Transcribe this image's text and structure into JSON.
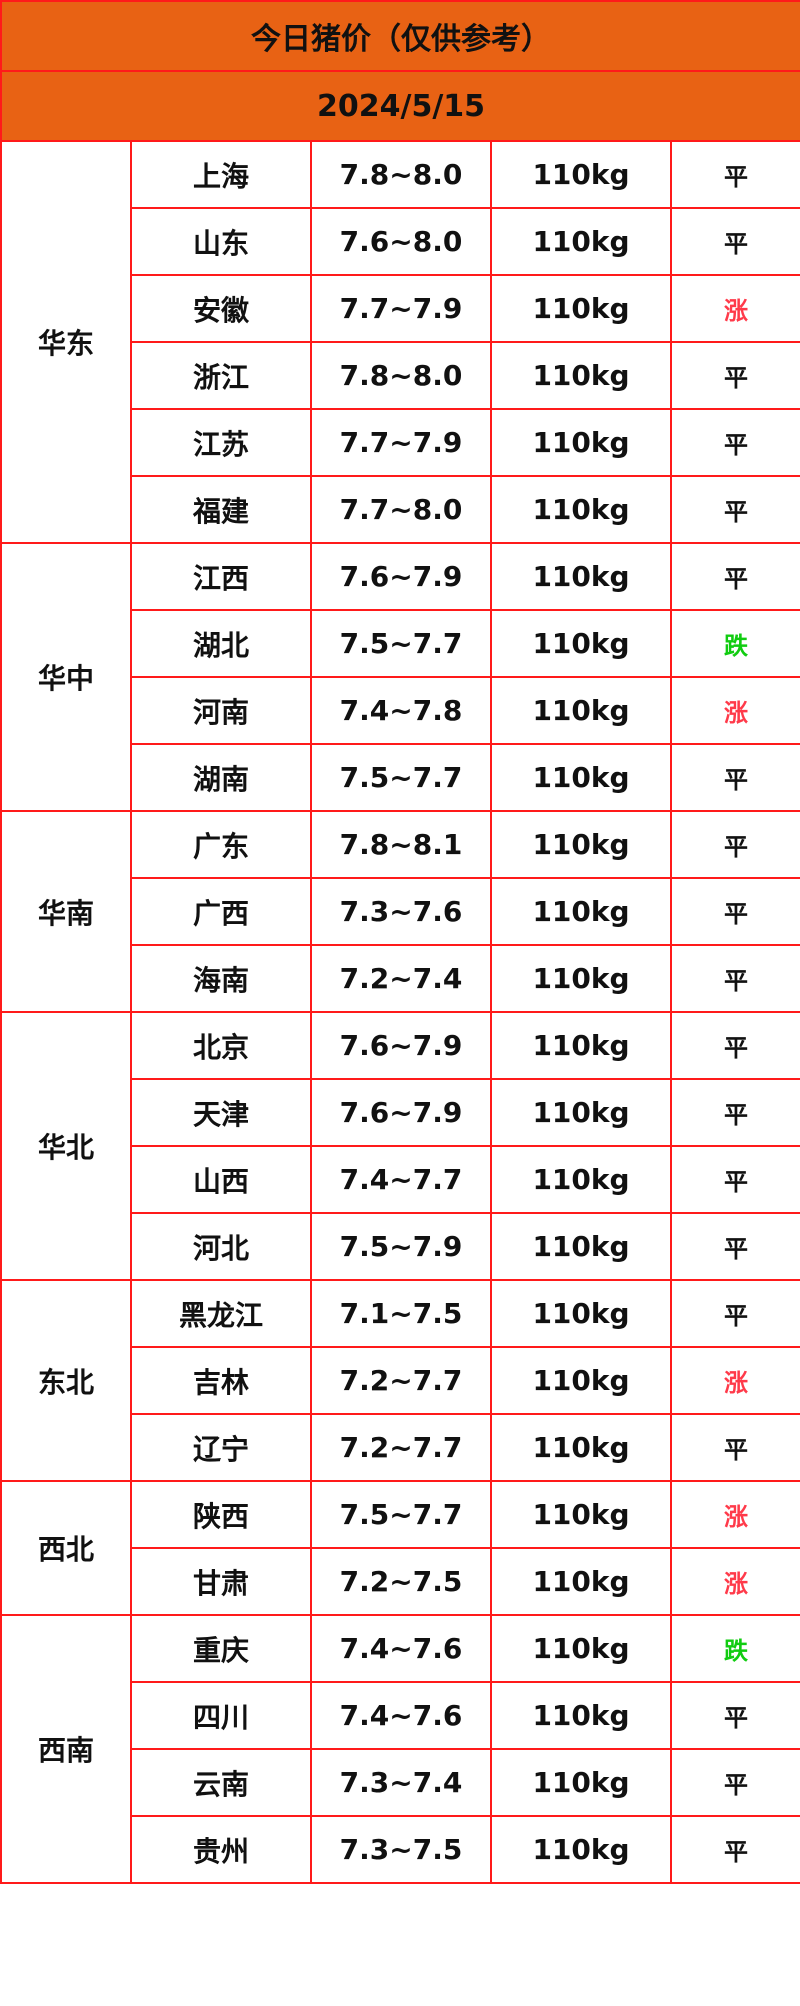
{
  "title": "今日猪价（仅供参考）",
  "date": "2024/5/15",
  "colors": {
    "header_bg": "#e86214",
    "border": "#ff1a1a",
    "up": "#ff3a4a",
    "down": "#11cc11"
  },
  "regions": [
    {
      "name": "华东",
      "rows": [
        {
          "province": "上海",
          "price": "7.8~8.0",
          "weight": "110kg",
          "trend": "平"
        },
        {
          "province": "山东",
          "price": "7.6~8.0",
          "weight": "110kg",
          "trend": "平"
        },
        {
          "province": "安徽",
          "price": "7.7~7.9",
          "weight": "110kg",
          "trend": "涨"
        },
        {
          "province": "浙江",
          "price": "7.8~8.0",
          "weight": "110kg",
          "trend": "平"
        },
        {
          "province": "江苏",
          "price": "7.7~7.9",
          "weight": "110kg",
          "trend": "平"
        },
        {
          "province": "福建",
          "price": "7.7~8.0",
          "weight": "110kg",
          "trend": "平"
        }
      ]
    },
    {
      "name": "华中",
      "rows": [
        {
          "province": "江西",
          "price": "7.6~7.9",
          "weight": "110kg",
          "trend": "平"
        },
        {
          "province": "湖北",
          "price": "7.5~7.7",
          "weight": "110kg",
          "trend": "跌"
        },
        {
          "province": "河南",
          "price": "7.4~7.8",
          "weight": "110kg",
          "trend": "涨"
        },
        {
          "province": "湖南",
          "price": "7.5~7.7",
          "weight": "110kg",
          "trend": "平"
        }
      ]
    },
    {
      "name": "华南",
      "rows": [
        {
          "province": "广东",
          "price": "7.8~8.1",
          "weight": "110kg",
          "trend": "平"
        },
        {
          "province": "广西",
          "price": "7.3~7.6",
          "weight": "110kg",
          "trend": "平"
        },
        {
          "province": "海南",
          "price": "7.2~7.4",
          "weight": "110kg",
          "trend": "平"
        }
      ]
    },
    {
      "name": "华北",
      "rows": [
        {
          "province": "北京",
          "price": "7.6~7.9",
          "weight": "110kg",
          "trend": "平"
        },
        {
          "province": "天津",
          "price": "7.6~7.9",
          "weight": "110kg",
          "trend": "平"
        },
        {
          "province": "山西",
          "price": "7.4~7.7",
          "weight": "110kg",
          "trend": "平"
        },
        {
          "province": "河北",
          "price": "7.5~7.9",
          "weight": "110kg",
          "trend": "平"
        }
      ]
    },
    {
      "name": "东北",
      "rows": [
        {
          "province": "黑龙江",
          "price": "7.1~7.5",
          "weight": "110kg",
          "trend": "平"
        },
        {
          "province": "吉林",
          "price": "7.2~7.7",
          "weight": "110kg",
          "trend": "涨"
        },
        {
          "province": "辽宁",
          "price": "7.2~7.7",
          "weight": "110kg",
          "trend": "平"
        }
      ]
    },
    {
      "name": "西北",
      "rows": [
        {
          "province": "陕西",
          "price": "7.5~7.7",
          "weight": "110kg",
          "trend": "涨"
        },
        {
          "province": "甘肃",
          "price": "7.2~7.5",
          "weight": "110kg",
          "trend": "涨"
        }
      ]
    },
    {
      "name": "西南",
      "rows": [
        {
          "province": "重庆",
          "price": "7.4~7.6",
          "weight": "110kg",
          "trend": "跌"
        },
        {
          "province": "四川",
          "price": "7.4~7.6",
          "weight": "110kg",
          "trend": "平"
        },
        {
          "province": "云南",
          "price": "7.3~7.4",
          "weight": "110kg",
          "trend": "平"
        },
        {
          "province": "贵州",
          "price": "7.3~7.5",
          "weight": "110kg",
          "trend": "平"
        }
      ]
    }
  ]
}
